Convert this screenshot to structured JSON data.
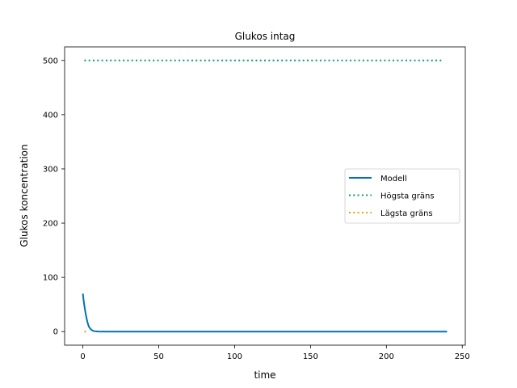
{
  "chart_data": {
    "type": "line",
    "title": "Glukos intag",
    "xlabel": "time",
    "ylabel": "Glukos koncentration",
    "xlim": [
      -12,
      252
    ],
    "ylim": [
      -25,
      525
    ],
    "xticks": [
      0,
      50,
      100,
      150,
      200,
      250
    ],
    "yticks": [
      0,
      100,
      200,
      300,
      400,
      500
    ],
    "grid": false,
    "legend_position": "center-right",
    "series": [
      {
        "name": "Modell",
        "style": "solid",
        "color": "#0072b2",
        "x": [
          0,
          0.5,
          1,
          1.5,
          2,
          2.5,
          3,
          3.5,
          4,
          5,
          6,
          7,
          8,
          10,
          15,
          20,
          50,
          100,
          150,
          200,
          240
        ],
        "y": [
          70,
          58,
          48,
          39,
          31,
          24,
          18,
          13,
          9,
          5,
          2.5,
          1.2,
          0.6,
          0.2,
          0,
          0,
          0,
          0,
          0,
          0,
          0
        ]
      },
      {
        "name": "Högsta gräns",
        "style": "dotted",
        "color": "#009e73",
        "x": [
          1,
          238
        ],
        "y": [
          500,
          500
        ]
      },
      {
        "name": "Lägsta gräns",
        "style": "dotted",
        "color": "#e69f00",
        "x": [
          1,
          3
        ],
        "y": [
          0,
          0
        ]
      }
    ]
  }
}
